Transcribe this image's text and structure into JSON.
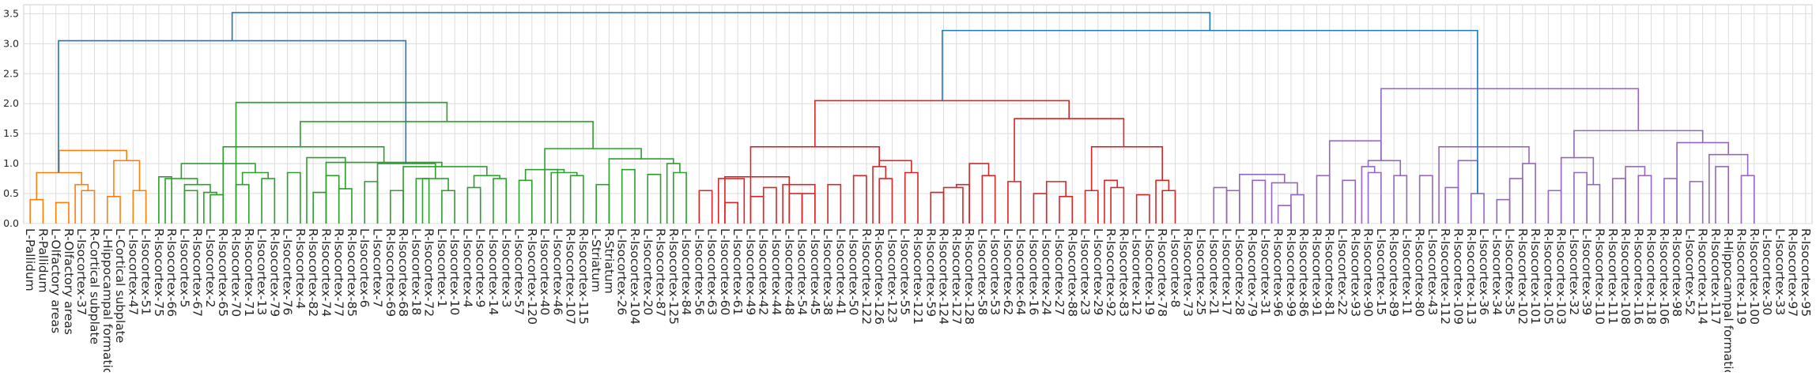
{
  "chart_data": {
    "type": "dendrogram",
    "title": "",
    "xlabel": "",
    "ylabel": "",
    "ylim": [
      0,
      3.65
    ],
    "yticks": [
      0.0,
      0.5,
      1.0,
      1.5,
      2.0,
      2.5,
      3.0,
      3.5
    ],
    "ytick_labels": [
      "0.0",
      "0.5",
      "1.0",
      "1.5",
      "2.0",
      "2.5",
      "3.0",
      "3.5"
    ],
    "grid": true,
    "colors": {
      "orange": "#ff7f0e",
      "green": "#2ca02c",
      "red": "#d62728",
      "purple": "#9467bd",
      "above_threshold": "#1f77b4"
    },
    "leaves": [
      "L-Pallidum",
      "R-Pallidum",
      "L-Olfactory areas",
      "R-Olfactory areas",
      "L-Isocortex-37",
      "R-Cortical subplate",
      "L-Hippocampal formation",
      "L-Cortical subplate",
      "L-Isocortex-47",
      "L-Isocortex-51",
      "R-Isocortex-75",
      "R-Isocortex-66",
      "L-Isocortex-5",
      "R-Isocortex-67",
      "L-Isocortex-2",
      "R-Isocortex-65",
      "R-Isocortex-70",
      "R-Isocortex-71",
      "L-Isocortex-13",
      "R-Isocortex-79",
      "L-Isocortex-76",
      "R-Isocortex-4",
      "R-Isocortex-82",
      "R-Isocortex-74",
      "R-Isocortex-77",
      "R-Isocortex-85",
      "L-Isocortex-6",
      "L-Isocortex-7",
      "R-Isocortex-69",
      "R-Isocortex-68",
      "L-Isocortex-18",
      "R-Isocortex-72",
      "L-Isocortex-1",
      "L-Isocortex-10",
      "L-Isocortex-4",
      "L-Isocortex-9",
      "L-Isocortex-14",
      "L-Isocortex-3",
      "L-Isocortex-57",
      "R-Isocortex-120",
      "L-Isocortex-40",
      "L-Isocortex-46",
      "R-Isocortex-107",
      "R-Isocortex-115",
      "L-Striatum",
      "R-Striatum",
      "L-Isocortex-26",
      "R-Isocortex-104",
      "L-Isocortex-20",
      "R-Isocortex-87",
      "R-Isocortex-125",
      "L-Isocortex-84",
      "L-Isocortex-56",
      "L-Isocortex-63",
      "L-Isocortex-60",
      "L-Isocortex-61",
      "L-Isocortex-49",
      "L-Isocortex-42",
      "L-Isocortex-44",
      "L-Isocortex-48",
      "L-Isocortex-54",
      "L-Isocortex-45",
      "L-Isocortex-38",
      "L-Isocortex-41",
      "L-Isocortex-50",
      "R-Isocortex-122",
      "R-Isocortex-126",
      "L-Isocortex-123",
      "L-Isocortex-55",
      "R-Isocortex-121",
      "R-Isocortex-59",
      "R-Isocortex-124",
      "R-Isocortex-127",
      "R-Isocortex-128",
      "L-Isocortex-58",
      "L-Isocortex-53",
      "L-Isocortex-62",
      "L-Isocortex-64",
      "L-Isocortex-16",
      "L-Isocortex-24",
      "L-Isocortex-27",
      "R-Isocortex-88",
      "L-Isocortex-23",
      "L-Isocortex-29",
      "R-Isocortex-92",
      "R-Isocortex-83",
      "L-Isocortex-12",
      "L-Isocortex-19",
      "R-Isocortex-78",
      "L-Isocortex-8",
      "R-Isocortex-73",
      "L-Isocortex-25",
      "L-Isocortex-21",
      "L-Isocortex-17",
      "L-Isocortex-28",
      "R-Isocortex-79",
      "L-Isocortex-31",
      "R-Isocortex-96",
      "R-Isocortex-99",
      "R-Isocortex-86",
      "R-Isocortex-91",
      "R-Isocortex-81",
      "L-Isocortex-22",
      "R-Isocortex-93",
      "R-Isocortex-90",
      "L-Isocortex-15",
      "R-Isocortex-89",
      "L-Isocortex-11",
      "R-Isocortex-80",
      "L-Isocortex-43",
      "R-Isocortex-112",
      "R-Isocortex-109",
      "R-Isocortex-113",
      "L-Isocortex-36",
      "L-Isocortex-34",
      "L-Isocortex-35",
      "R-Isocortex-102",
      "R-Isocortex-101",
      "R-Isocortex-105",
      "R-Isocortex-103",
      "L-Isocortex-32",
      "L-Isocortex-39",
      "R-Isocortex-110",
      "R-Isocortex-111",
      "R-Isocortex-108",
      "R-Isocortex-116",
      "R-Isocortex-118",
      "R-Isocortex-106",
      "R-Isocortex-98",
      "L-Isocortex-52",
      "R-Isocortex-114",
      "R-Isocortex-117",
      "R-Hippocampal formation",
      "R-Isocortex-119",
      "R-Isocortex-100",
      "L-Isocortex-30",
      "L-Isocortex-33",
      "R-Isocortex-97",
      "R-Isocortex-95"
    ],
    "clusters": [
      {
        "color": "orange",
        "first_leaf": 0,
        "last_leaf": 9
      },
      {
        "color": "green",
        "first_leaf": 10,
        "last_leaf": 51
      },
      {
        "color": "red",
        "first_leaf": 52,
        "last_leaf": 91
      },
      {
        "color": "purple",
        "first_leaf": 92,
        "last_leaf": 137
      }
    ],
    "links": [
      [
        0,
        1,
        0.4,
        "orange"
      ],
      [
        2,
        3,
        0.35,
        "orange"
      ],
      [
        4,
        5,
        0.55,
        "orange"
      ],
      [
        3.5,
        4.5,
        0.65,
        "orange"
      ],
      [
        0.5,
        4,
        0.85,
        "orange"
      ],
      [
        6,
        7,
        0.45,
        "orange"
      ],
      [
        8,
        9,
        0.55,
        "orange"
      ],
      [
        6.5,
        8.5,
        1.05,
        "orange"
      ],
      [
        2.25,
        7.5,
        1.22,
        "orange"
      ],
      [
        10,
        11,
        0.78,
        "green"
      ],
      [
        12,
        13,
        0.55,
        "green"
      ],
      [
        14,
        15,
        0.48,
        "green"
      ],
      [
        13.5,
        14.5,
        0.52,
        "green"
      ],
      [
        12,
        14,
        0.65,
        "green"
      ],
      [
        10.5,
        13,
        0.75,
        "green"
      ],
      [
        16,
        17,
        0.65,
        "green"
      ],
      [
        18,
        19,
        0.75,
        "green"
      ],
      [
        16.5,
        18.5,
        0.85,
        "green"
      ],
      [
        11.75,
        17.5,
        1.0,
        "green"
      ],
      [
        20,
        21,
        0.85,
        "green"
      ],
      [
        22,
        23,
        0.52,
        "green"
      ],
      [
        23,
        24,
        0.8,
        "green"
      ],
      [
        24,
        25,
        0.58,
        "green"
      ],
      [
        21.5,
        24.5,
        1.1,
        "green"
      ],
      [
        26,
        27,
        0.7,
        "green"
      ],
      [
        28,
        29,
        0.55,
        "green"
      ],
      [
        30,
        31,
        0.75,
        "green"
      ],
      [
        32,
        33,
        0.55,
        "green"
      ],
      [
        30.5,
        32.5,
        0.75,
        "green"
      ],
      [
        27,
        31.5,
        1.0,
        "green"
      ],
      [
        34,
        35,
        0.6,
        "green"
      ],
      [
        36,
        37,
        0.75,
        "green"
      ],
      [
        34.5,
        36.5,
        0.8,
        "green"
      ],
      [
        29,
        35.5,
        0.95,
        "green"
      ],
      [
        23,
        32,
        1.02,
        "green"
      ],
      [
        15,
        27.5,
        1.28,
        "green"
      ],
      [
        38,
        39,
        0.72,
        "green"
      ],
      [
        40,
        41,
        0.9,
        "green"
      ],
      [
        42,
        43,
        0.8,
        "green"
      ],
      [
        40.5,
        42.5,
        0.85,
        "green"
      ],
      [
        38.5,
        41.5,
        0.9,
        "green"
      ],
      [
        44,
        45,
        0.65,
        "green"
      ],
      [
        46,
        47,
        0.9,
        "green"
      ],
      [
        48,
        49,
        0.82,
        "green"
      ],
      [
        50,
        51,
        0.85,
        "green"
      ],
      [
        49.5,
        50.5,
        1.0,
        "green"
      ],
      [
        45,
        50,
        1.08,
        "green"
      ],
      [
        40,
        47.5,
        1.25,
        "green"
      ],
      [
        21,
        43.75,
        1.7,
        "green"
      ],
      [
        16,
        32.4,
        2.02,
        "green"
      ],
      [
        52,
        53,
        0.55,
        "red"
      ],
      [
        54,
        55,
        0.35,
        "red"
      ],
      [
        53.5,
        55.5,
        0.75,
        "red"
      ],
      [
        56,
        57,
        0.45,
        "red"
      ],
      [
        57,
        58,
        0.6,
        "red"
      ],
      [
        59,
        60,
        0.5,
        "red"
      ],
      [
        60,
        61,
        0.5,
        "red"
      ],
      [
        58.5,
        61,
        0.65,
        "red"
      ],
      [
        54,
        59,
        0.78,
        "red"
      ],
      [
        62,
        63,
        0.65,
        "red"
      ],
      [
        64,
        65,
        0.8,
        "red"
      ],
      [
        66,
        67,
        0.75,
        "red"
      ],
      [
        65.5,
        66.5,
        0.95,
        "red"
      ],
      [
        68,
        69,
        0.85,
        "red"
      ],
      [
        66,
        68.5,
        1.05,
        "red"
      ],
      [
        56,
        66,
        1.28,
        "red"
      ],
      [
        70,
        71,
        0.52,
        "red"
      ],
      [
        72,
        73,
        0.65,
        "red"
      ],
      [
        71,
        72.5,
        0.6,
        "red"
      ],
      [
        74,
        75,
        0.8,
        "red"
      ],
      [
        73,
        74.5,
        1.0,
        "red"
      ],
      [
        76,
        77,
        0.7,
        "red"
      ],
      [
        78,
        79,
        0.5,
        "red"
      ],
      [
        80,
        81,
        0.45,
        "red"
      ],
      [
        79,
        80.5,
        0.7,
        "red"
      ],
      [
        82,
        83,
        0.55,
        "red"
      ],
      [
        84,
        85,
        0.6,
        "red"
      ],
      [
        83.5,
        84.5,
        0.72,
        "red"
      ],
      [
        86,
        87,
        0.48,
        "red"
      ],
      [
        88,
        89,
        0.55,
        "red"
      ],
      [
        87.5,
        88.5,
        0.72,
        "red"
      ],
      [
        82.5,
        88,
        1.28,
        "red"
      ],
      [
        76.5,
        85,
        1.75,
        "red"
      ],
      [
        61,
        80.75,
        2.05,
        "red"
      ],
      [
        92,
        93,
        0.6,
        "purple"
      ],
      [
        93,
        94,
        0.55,
        "purple"
      ],
      [
        95,
        96,
        0.72,
        "purple"
      ],
      [
        97,
        98,
        0.3,
        "purple"
      ],
      [
        98,
        99,
        0.48,
        "purple"
      ],
      [
        96.5,
        98.5,
        0.68,
        "purple"
      ],
      [
        94,
        97.5,
        0.82,
        "purple"
      ],
      [
        100,
        101,
        0.8,
        "purple"
      ],
      [
        102,
        103,
        0.72,
        "purple"
      ],
      [
        104,
        105,
        0.85,
        "purple"
      ],
      [
        103.5,
        104.5,
        0.95,
        "purple"
      ],
      [
        106,
        107,
        0.8,
        "purple"
      ],
      [
        104,
        106.5,
        1.05,
        "purple"
      ],
      [
        101,
        105,
        1.38,
        "purple"
      ],
      [
        108,
        109,
        0.8,
        "purple"
      ],
      [
        110,
        111,
        0.6,
        "purple"
      ],
      [
        112,
        113,
        0.5,
        "purple"
      ],
      [
        111,
        112.5,
        1.05,
        "purple"
      ],
      [
        114,
        115,
        0.4,
        "purple"
      ],
      [
        115,
        116,
        0.75,
        "purple"
      ],
      [
        116,
        117,
        1.0,
        "purple"
      ],
      [
        109.5,
        116.5,
        1.28,
        "purple"
      ],
      [
        118,
        119,
        0.55,
        "purple"
      ],
      [
        120,
        121,
        0.85,
        "purple"
      ],
      [
        121,
        122,
        0.65,
        "purple"
      ],
      [
        119,
        121.5,
        1.1,
        "purple"
      ],
      [
        123,
        124,
        0.75,
        "purple"
      ],
      [
        125,
        126,
        0.8,
        "purple"
      ],
      [
        124,
        125.5,
        0.95,
        "purple"
      ],
      [
        127,
        128,
        0.75,
        "purple"
      ],
      [
        129,
        130,
        0.7,
        "purple"
      ],
      [
        131,
        132,
        0.95,
        "purple"
      ],
      [
        133,
        134,
        0.8,
        "purple"
      ],
      [
        130.5,
        133.5,
        1.15,
        "purple"
      ],
      [
        128,
        132,
        1.35,
        "purple"
      ],
      [
        120,
        130,
        1.55,
        "purple"
      ],
      [
        105,
        125,
        2.25,
        "purple"
      ],
      [
        2.2,
        29.2,
        3.05,
        "above_threshold"
      ],
      [
        70.9,
        112.5,
        3.22,
        "above_threshold"
      ],
      [
        15.7,
        91.7,
        3.52,
        "above_threshold"
      ]
    ]
  }
}
